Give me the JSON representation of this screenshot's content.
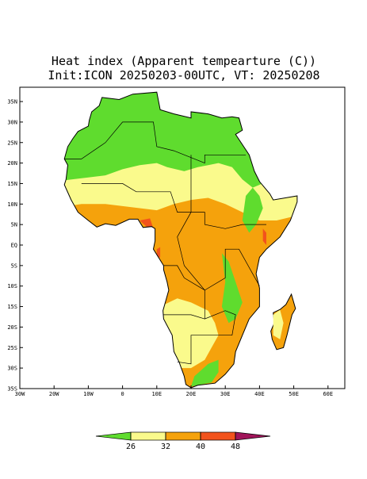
{
  "map": {
    "title": "Heat index (Apparent tempearture (C))",
    "subtitle": "Init:ICON 20250203-00UTC, VT: 20250208",
    "lon_ticks": [
      {
        "value": -30,
        "label": "30W"
      },
      {
        "value": -20,
        "label": "20W"
      },
      {
        "value": -10,
        "label": "10W"
      },
      0,
      {
        "value": 10,
        "label": "10E"
      },
      {
        "value": 20,
        "label": "20E"
      },
      {
        "value": 30,
        "label": "30E"
      },
      {
        "value": 40,
        "label": "40E"
      },
      {
        "value": 50,
        "label": "50E"
      },
      {
        "value": 60,
        "label": "60E"
      }
    ],
    "lat_ticks": [
      {
        "value": 35,
        "label": "35N"
      },
      {
        "value": 30,
        "label": "30N"
      },
      {
        "value": 25,
        "label": "25N"
      },
      {
        "value": 20,
        "label": "20N"
      },
      {
        "value": 15,
        "label": "15N"
      },
      {
        "value": 10,
        "label": "10N"
      },
      {
        "value": 5,
        "label": "5N"
      },
      {
        "value": 0,
        "label": "EQ"
      },
      {
        "value": -5,
        "label": "5S"
      },
      {
        "value": -10,
        "label": "10S"
      },
      {
        "value": -15,
        "label": "15S"
      },
      {
        "value": -20,
        "label": "20S"
      },
      {
        "value": -25,
        "label": "25S"
      },
      {
        "value": -30,
        "label": "30S"
      },
      {
        "value": -35,
        "label": "35S"
      }
    ],
    "colorbar": {
      "levels": [
        26,
        32,
        40,
        48
      ],
      "colors": [
        "#5fdc2e",
        "#fafa8c",
        "#f5a20c",
        "#f2531c",
        "#a0145a"
      ]
    }
  }
}
